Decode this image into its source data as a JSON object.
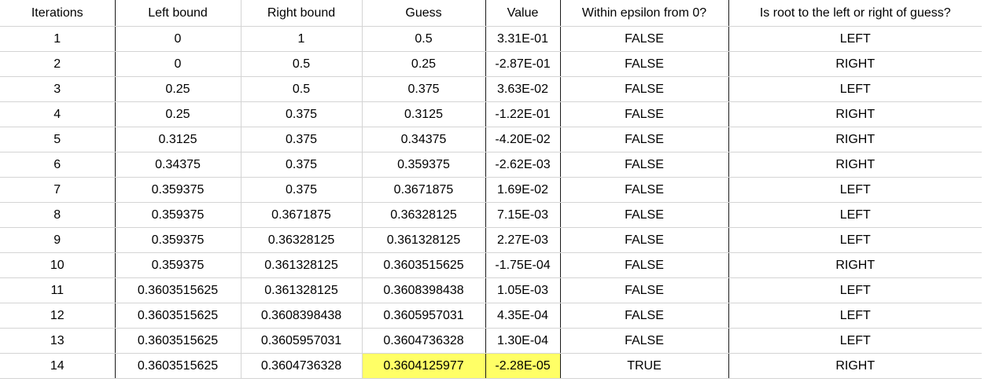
{
  "columns": [
    "Iterations",
    "Left bound",
    "Right bound",
    "Guess",
    "Value",
    "Within epsilon from 0?",
    "Is root to the left or right of guess?"
  ],
  "highlight_color": "#ffff66",
  "rows": [
    [
      "1",
      "0",
      "1",
      "0.5",
      "3.31E-01",
      "FALSE",
      "LEFT"
    ],
    [
      "2",
      "0",
      "0.5",
      "0.25",
      "-2.87E-01",
      "FALSE",
      "RIGHT"
    ],
    [
      "3",
      "0.25",
      "0.5",
      "0.375",
      "3.63E-02",
      "FALSE",
      "LEFT"
    ],
    [
      "4",
      "0.25",
      "0.375",
      "0.3125",
      "-1.22E-01",
      "FALSE",
      "RIGHT"
    ],
    [
      "5",
      "0.3125",
      "0.375",
      "0.34375",
      "-4.20E-02",
      "FALSE",
      "RIGHT"
    ],
    [
      "6",
      "0.34375",
      "0.375",
      "0.359375",
      "-2.62E-03",
      "FALSE",
      "RIGHT"
    ],
    [
      "7",
      "0.359375",
      "0.375",
      "0.3671875",
      "1.69E-02",
      "FALSE",
      "LEFT"
    ],
    [
      "8",
      "0.359375",
      "0.3671875",
      "0.36328125",
      "7.15E-03",
      "FALSE",
      "LEFT"
    ],
    [
      "9",
      "0.359375",
      "0.36328125",
      "0.361328125",
      "2.27E-03",
      "FALSE",
      "LEFT"
    ],
    [
      "10",
      "0.359375",
      "0.361328125",
      "0.3603515625",
      "-1.75E-04",
      "FALSE",
      "RIGHT"
    ],
    [
      "11",
      "0.3603515625",
      "0.361328125",
      "0.3608398438",
      "1.05E-03",
      "FALSE",
      "LEFT"
    ],
    [
      "12",
      "0.3603515625",
      "0.3608398438",
      "0.3605957031",
      "4.35E-04",
      "FALSE",
      "LEFT"
    ],
    [
      "13",
      "0.3603515625",
      "0.3605957031",
      "0.3604736328",
      "1.30E-04",
      "FALSE",
      "LEFT"
    ],
    [
      "14",
      "0.3603515625",
      "0.3604736328",
      "0.3604125977",
      "-2.28E-05",
      "TRUE",
      "RIGHT"
    ]
  ]
}
